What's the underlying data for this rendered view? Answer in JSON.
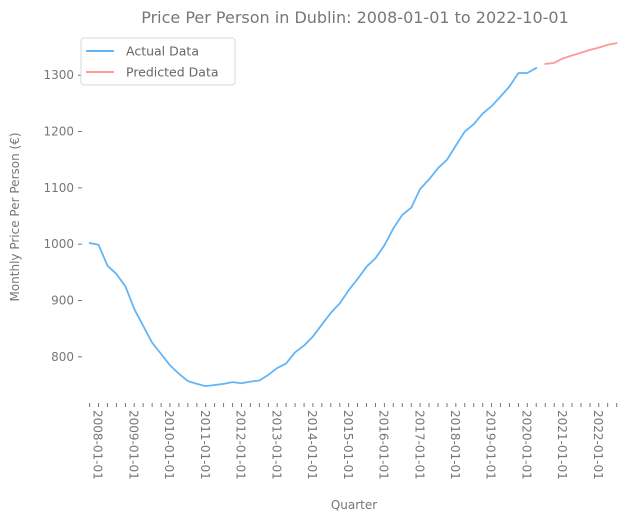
{
  "chart_data": {
    "type": "line",
    "title": "Price Per Person in Dublin: 2008-01-01 to 2022-10-01",
    "xlabel": "Quarter",
    "ylabel": "Monthly Price Per Person (€)",
    "ylim": [
      718,
      1375
    ],
    "yticks": [
      800,
      900,
      1000,
      1100,
      1200,
      1300
    ],
    "xlim": [
      "2007-10-15",
      "2022-12-15"
    ],
    "xtick_labels": [
      "2008-01-01",
      "2009-01-01",
      "2010-01-01",
      "2011-01-01",
      "2012-01-01",
      "2013-01-01",
      "2014-01-01",
      "2015-01-01",
      "2016-01-01",
      "2017-01-01",
      "2018-01-01",
      "2019-01-01",
      "2020-01-01",
      "2021-01-01",
      "2022-01-01"
    ],
    "grid": false,
    "legend": "top-left",
    "colors": {
      "actual": "#64b5f6",
      "predicted": "#ff9896",
      "text": "#777777"
    },
    "series": [
      {
        "name": "Actual Data",
        "x": [
          "2008-01-01",
          "2008-04-01",
          "2008-07-01",
          "2008-10-01",
          "2009-01-01",
          "2009-04-01",
          "2009-07-01",
          "2009-10-01",
          "2010-01-01",
          "2010-04-01",
          "2010-07-01",
          "2010-10-01",
          "2011-01-01",
          "2011-04-01",
          "2011-07-01",
          "2011-10-01",
          "2012-01-01",
          "2012-04-01",
          "2012-07-01",
          "2012-10-01",
          "2013-01-01",
          "2013-04-01",
          "2013-07-01",
          "2013-10-01",
          "2014-01-01",
          "2014-04-01",
          "2014-07-01",
          "2014-10-01",
          "2015-01-01",
          "2015-04-01",
          "2015-07-01",
          "2015-10-01",
          "2016-01-01",
          "2016-04-01",
          "2016-07-01",
          "2016-10-01",
          "2017-01-01",
          "2017-04-01",
          "2017-07-01",
          "2017-10-01",
          "2018-01-01",
          "2018-04-01",
          "2018-07-01",
          "2018-10-01",
          "2019-01-01",
          "2019-04-01",
          "2019-07-01",
          "2019-10-01",
          "2020-01-01",
          "2020-04-01",
          "2020-07-01"
        ],
        "values": [
          1002,
          999,
          962,
          947,
          925,
          885,
          855,
          825,
          805,
          785,
          770,
          757,
          752,
          748,
          750,
          752,
          755,
          753,
          756,
          758,
          768,
          780,
          788,
          808,
          820,
          836,
          857,
          878,
          895,
          918,
          938,
          960,
          975,
          998,
          1028,
          1052,
          1065,
          1098,
          1115,
          1135,
          1150,
          1175,
          1200,
          1213,
          1232,
          1245,
          1262,
          1280,
          1304,
          1304,
          1313
        ]
      },
      {
        "name": "Predicted Data",
        "x": [
          "2020-10-01",
          "2021-01-01",
          "2021-04-01",
          "2021-07-01",
          "2021-10-01",
          "2022-01-01",
          "2022-04-01",
          "2022-07-01",
          "2022-10-01"
        ],
        "values": [
          1320,
          1322,
          1330,
          1335,
          1340,
          1345,
          1349,
          1354,
          1357
        ]
      }
    ]
  }
}
